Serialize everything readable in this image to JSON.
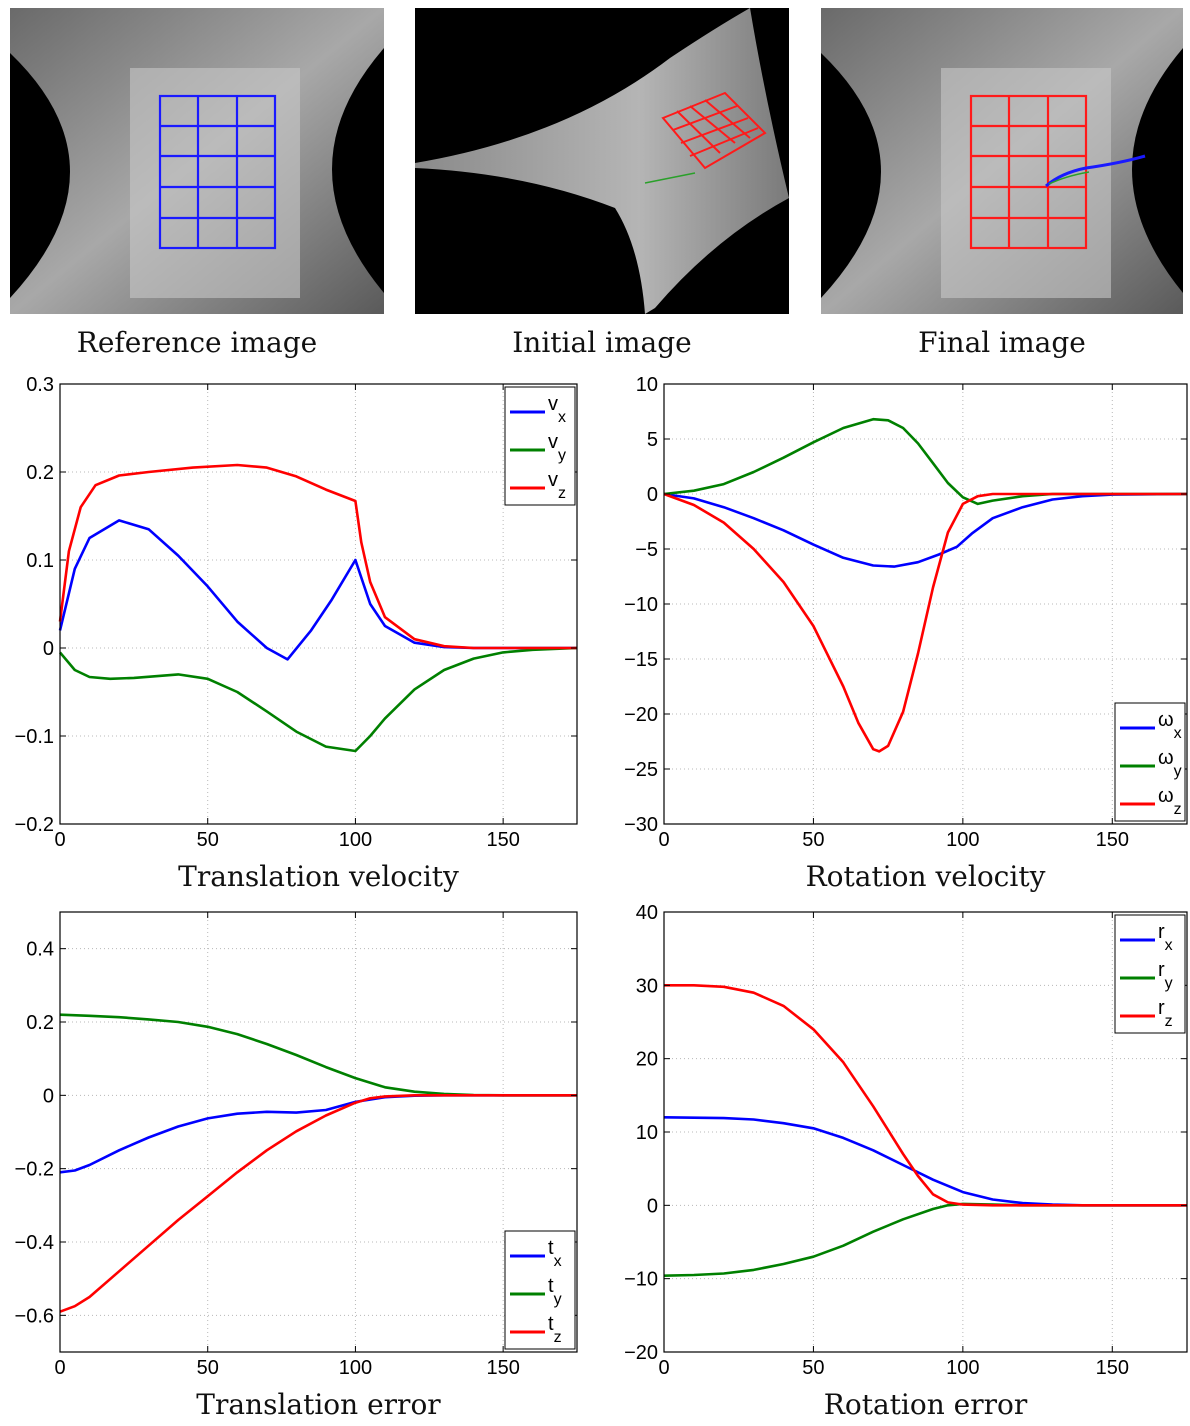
{
  "images": [
    {
      "caption": "Reference image",
      "grid_color": "#1010ff"
    },
    {
      "caption": "Initial image",
      "grid_color": "#ff1010"
    },
    {
      "caption": "Final image",
      "grid_color": "#ff1010"
    }
  ],
  "chart_data": [
    {
      "type": "line",
      "title": "Translation velocity",
      "xlim": [
        0,
        175
      ],
      "ylim": [
        -0.2,
        0.3
      ],
      "xticks": [
        0,
        50,
        100,
        150
      ],
      "yticks": [
        -0.2,
        -0.1,
        0,
        0.1,
        0.2,
        0.3
      ],
      "yticklabels": [
        "−0.2",
        "−0.1",
        "0",
        "0.1",
        "0.2",
        "0.3"
      ],
      "grid": true,
      "legend_position": "top-right",
      "series": [
        {
          "name": "v_x",
          "label_main": "v",
          "label_sub": "x",
          "color": "#0000ff",
          "points": [
            [
              0,
              0.02
            ],
            [
              5,
              0.09
            ],
            [
              10,
              0.125
            ],
            [
              20,
              0.145
            ],
            [
              30,
              0.135
            ],
            [
              40,
              0.105
            ],
            [
              50,
              0.07
            ],
            [
              60,
              0.03
            ],
            [
              70,
              0.0
            ],
            [
              77,
              -0.013
            ],
            [
              85,
              0.02
            ],
            [
              92,
              0.055
            ],
            [
              100,
              0.1
            ],
            [
              105,
              0.05
            ],
            [
              110,
              0.025
            ],
            [
              120,
              0.006
            ],
            [
              130,
              0.001
            ],
            [
              140,
              0.0
            ],
            [
              175,
              0.0
            ]
          ]
        },
        {
          "name": "v_y",
          "label_main": "v",
          "label_sub": "y",
          "color": "#008000",
          "points": [
            [
              0,
              -0.005
            ],
            [
              5,
              -0.025
            ],
            [
              10,
              -0.033
            ],
            [
              17,
              -0.035
            ],
            [
              25,
              -0.034
            ],
            [
              40,
              -0.03
            ],
            [
              50,
              -0.035
            ],
            [
              60,
              -0.05
            ],
            [
              70,
              -0.072
            ],
            [
              80,
              -0.095
            ],
            [
              90,
              -0.112
            ],
            [
              100,
              -0.117
            ],
            [
              105,
              -0.1
            ],
            [
              110,
              -0.08
            ],
            [
              120,
              -0.047
            ],
            [
              130,
              -0.025
            ],
            [
              140,
              -0.012
            ],
            [
              150,
              -0.005
            ],
            [
              160,
              -0.002
            ],
            [
              175,
              0.0
            ]
          ]
        },
        {
          "name": "v_z",
          "label_main": "v",
          "label_sub": "z",
          "color": "#ff0000",
          "points": [
            [
              0,
              0.03
            ],
            [
              3,
              0.11
            ],
            [
              7,
              0.16
            ],
            [
              12,
              0.185
            ],
            [
              20,
              0.196
            ],
            [
              30,
              0.2
            ],
            [
              45,
              0.205
            ],
            [
              60,
              0.208
            ],
            [
              70,
              0.205
            ],
            [
              80,
              0.195
            ],
            [
              90,
              0.18
            ],
            [
              100,
              0.167
            ],
            [
              102,
              0.12
            ],
            [
              105,
              0.075
            ],
            [
              110,
              0.035
            ],
            [
              120,
              0.01
            ],
            [
              130,
              0.002
            ],
            [
              140,
              0.0
            ],
            [
              175,
              0.0
            ]
          ]
        }
      ]
    },
    {
      "type": "line",
      "title": "Rotation velocity",
      "xlim": [
        0,
        175
      ],
      "ylim": [
        -30,
        10
      ],
      "xticks": [
        0,
        50,
        100,
        150
      ],
      "yticks": [
        -30,
        -25,
        -20,
        -15,
        -10,
        -5,
        0,
        5,
        10
      ],
      "yticklabels": [
        "−30",
        "−25",
        "−20",
        "−15",
        "−10",
        "−5",
        "0",
        "5",
        "10"
      ],
      "grid": true,
      "legend_position": "bottom-right",
      "series": [
        {
          "name": "ω_x",
          "label_main": "ω",
          "label_sub": "x",
          "color": "#0000ff",
          "points": [
            [
              0,
              0.0
            ],
            [
              10,
              -0.4
            ],
            [
              20,
              -1.2
            ],
            [
              30,
              -2.2
            ],
            [
              40,
              -3.3
            ],
            [
              50,
              -4.6
            ],
            [
              60,
              -5.8
            ],
            [
              70,
              -6.5
            ],
            [
              77,
              -6.6
            ],
            [
              85,
              -6.2
            ],
            [
              92,
              -5.5
            ],
            [
              98,
              -4.8
            ],
            [
              103,
              -3.6
            ],
            [
              110,
              -2.2
            ],
            [
              120,
              -1.2
            ],
            [
              130,
              -0.5
            ],
            [
              140,
              -0.2
            ],
            [
              150,
              -0.05
            ],
            [
              175,
              0.0
            ]
          ]
        },
        {
          "name": "ω_y",
          "label_main": "ω",
          "label_sub": "y",
          "color": "#008000",
          "points": [
            [
              0,
              0.0
            ],
            [
              10,
              0.3
            ],
            [
              20,
              0.9
            ],
            [
              30,
              2.0
            ],
            [
              40,
              3.3
            ],
            [
              50,
              4.7
            ],
            [
              60,
              6.0
            ],
            [
              70,
              6.8
            ],
            [
              75,
              6.7
            ],
            [
              80,
              6.0
            ],
            [
              85,
              4.6
            ],
            [
              90,
              2.8
            ],
            [
              95,
              1.0
            ],
            [
              100,
              -0.3
            ],
            [
              105,
              -0.9
            ],
            [
              110,
              -0.6
            ],
            [
              120,
              -0.2
            ],
            [
              130,
              0.0
            ],
            [
              175,
              0.0
            ]
          ]
        },
        {
          "name": "ω_z",
          "label_main": "ω",
          "label_sub": "z",
          "color": "#ff0000",
          "points": [
            [
              0,
              0.0
            ],
            [
              10,
              -1.0
            ],
            [
              20,
              -2.6
            ],
            [
              30,
              -5.0
            ],
            [
              40,
              -8.0
            ],
            [
              50,
              -12.0
            ],
            [
              60,
              -17.5
            ],
            [
              65,
              -20.8
            ],
            [
              70,
              -23.2
            ],
            [
              72,
              -23.4
            ],
            [
              75,
              -22.9
            ],
            [
              80,
              -19.8
            ],
            [
              85,
              -14.5
            ],
            [
              90,
              -8.5
            ],
            [
              95,
              -3.5
            ],
            [
              100,
              -0.9
            ],
            [
              105,
              -0.2
            ],
            [
              110,
              0.0
            ],
            [
              175,
              0.0
            ]
          ]
        }
      ]
    },
    {
      "type": "line",
      "title": "Translation error",
      "xlim": [
        0,
        175
      ],
      "ylim": [
        -0.7,
        0.5
      ],
      "xticks": [
        0,
        50,
        100,
        150
      ],
      "yticks": [
        -0.6,
        -0.4,
        -0.2,
        0,
        0.2,
        0.4
      ],
      "yticklabels": [
        "−0.6",
        "−0.4",
        "−0.2",
        "0",
        "0.2",
        "0.4"
      ],
      "grid": true,
      "legend_position": "bottom-right",
      "series": [
        {
          "name": "t_x",
          "label_main": "t",
          "label_sub": "x",
          "color": "#0000ff",
          "points": [
            [
              0,
              -0.21
            ],
            [
              5,
              -0.205
            ],
            [
              10,
              -0.19
            ],
            [
              20,
              -0.15
            ],
            [
              30,
              -0.115
            ],
            [
              40,
              -0.085
            ],
            [
              50,
              -0.063
            ],
            [
              60,
              -0.05
            ],
            [
              70,
              -0.045
            ],
            [
              80,
              -0.047
            ],
            [
              90,
              -0.04
            ],
            [
              100,
              -0.018
            ],
            [
              110,
              -0.005
            ],
            [
              120,
              -0.001
            ],
            [
              130,
              0.0
            ],
            [
              175,
              0.0
            ]
          ]
        },
        {
          "name": "t_y",
          "label_main": "t",
          "label_sub": "y",
          "color": "#008000",
          "points": [
            [
              0,
              0.22
            ],
            [
              10,
              0.217
            ],
            [
              20,
              0.213
            ],
            [
              30,
              0.207
            ],
            [
              40,
              0.2
            ],
            [
              50,
              0.187
            ],
            [
              60,
              0.167
            ],
            [
              70,
              0.14
            ],
            [
              80,
              0.11
            ],
            [
              90,
              0.077
            ],
            [
              100,
              0.047
            ],
            [
              110,
              0.022
            ],
            [
              120,
              0.01
            ],
            [
              130,
              0.004
            ],
            [
              140,
              0.001
            ],
            [
              150,
              0.0
            ],
            [
              175,
              0.0
            ]
          ]
        },
        {
          "name": "t_z",
          "label_main": "t",
          "label_sub": "z",
          "color": "#ff0000",
          "points": [
            [
              0,
              -0.59
            ],
            [
              5,
              -0.575
            ],
            [
              10,
              -0.55
            ],
            [
              20,
              -0.48
            ],
            [
              30,
              -0.41
            ],
            [
              40,
              -0.34
            ],
            [
              50,
              -0.275
            ],
            [
              60,
              -0.21
            ],
            [
              70,
              -0.15
            ],
            [
              80,
              -0.098
            ],
            [
              90,
              -0.055
            ],
            [
              100,
              -0.02
            ],
            [
              105,
              -0.008
            ],
            [
              110,
              -0.003
            ],
            [
              120,
              0.0
            ],
            [
              175,
              0.0
            ]
          ]
        }
      ]
    },
    {
      "type": "line",
      "title": "Rotation error",
      "xlim": [
        0,
        175
      ],
      "ylim": [
        -20,
        40
      ],
      "xticks": [
        0,
        50,
        100,
        150
      ],
      "yticks": [
        -20,
        -10,
        0,
        10,
        20,
        30,
        40
      ],
      "yticklabels": [
        "−20",
        "−10",
        "0",
        "10",
        "20",
        "30",
        "40"
      ],
      "grid": true,
      "legend_position": "top-right",
      "series": [
        {
          "name": "r_x",
          "label_main": "r",
          "label_sub": "x",
          "color": "#0000ff",
          "points": [
            [
              0,
              12.0
            ],
            [
              20,
              11.9
            ],
            [
              30,
              11.7
            ],
            [
              40,
              11.2
            ],
            [
              50,
              10.5
            ],
            [
              60,
              9.2
            ],
            [
              70,
              7.5
            ],
            [
              80,
              5.5
            ],
            [
              90,
              3.5
            ],
            [
              100,
              1.8
            ],
            [
              110,
              0.8
            ],
            [
              120,
              0.3
            ],
            [
              130,
              0.1
            ],
            [
              140,
              0.0
            ],
            [
              175,
              0.0
            ]
          ]
        },
        {
          "name": "r_y",
          "label_main": "r",
          "label_sub": "y",
          "color": "#008000",
          "points": [
            [
              0,
              -9.6
            ],
            [
              10,
              -9.5
            ],
            [
              20,
              -9.3
            ],
            [
              30,
              -8.8
            ],
            [
              40,
              -8.0
            ],
            [
              50,
              -7.0
            ],
            [
              60,
              -5.5
            ],
            [
              70,
              -3.6
            ],
            [
              80,
              -1.9
            ],
            [
              90,
              -0.5
            ],
            [
              95,
              0.0
            ],
            [
              100,
              0.2
            ],
            [
              110,
              0.1
            ],
            [
              120,
              0.0
            ],
            [
              175,
              0.0
            ]
          ]
        },
        {
          "name": "r_z",
          "label_main": "r",
          "label_sub": "z",
          "color": "#ff0000",
          "points": [
            [
              0,
              30.0
            ],
            [
              10,
              30.0
            ],
            [
              20,
              29.8
            ],
            [
              30,
              29.0
            ],
            [
              40,
              27.2
            ],
            [
              50,
              24.0
            ],
            [
              60,
              19.5
            ],
            [
              70,
              13.5
            ],
            [
              80,
              7.0
            ],
            [
              85,
              4.0
            ],
            [
              90,
              1.5
            ],
            [
              95,
              0.4
            ],
            [
              100,
              0.1
            ],
            [
              110,
              0.0
            ],
            [
              175,
              0.0
            ]
          ]
        }
      ]
    }
  ]
}
